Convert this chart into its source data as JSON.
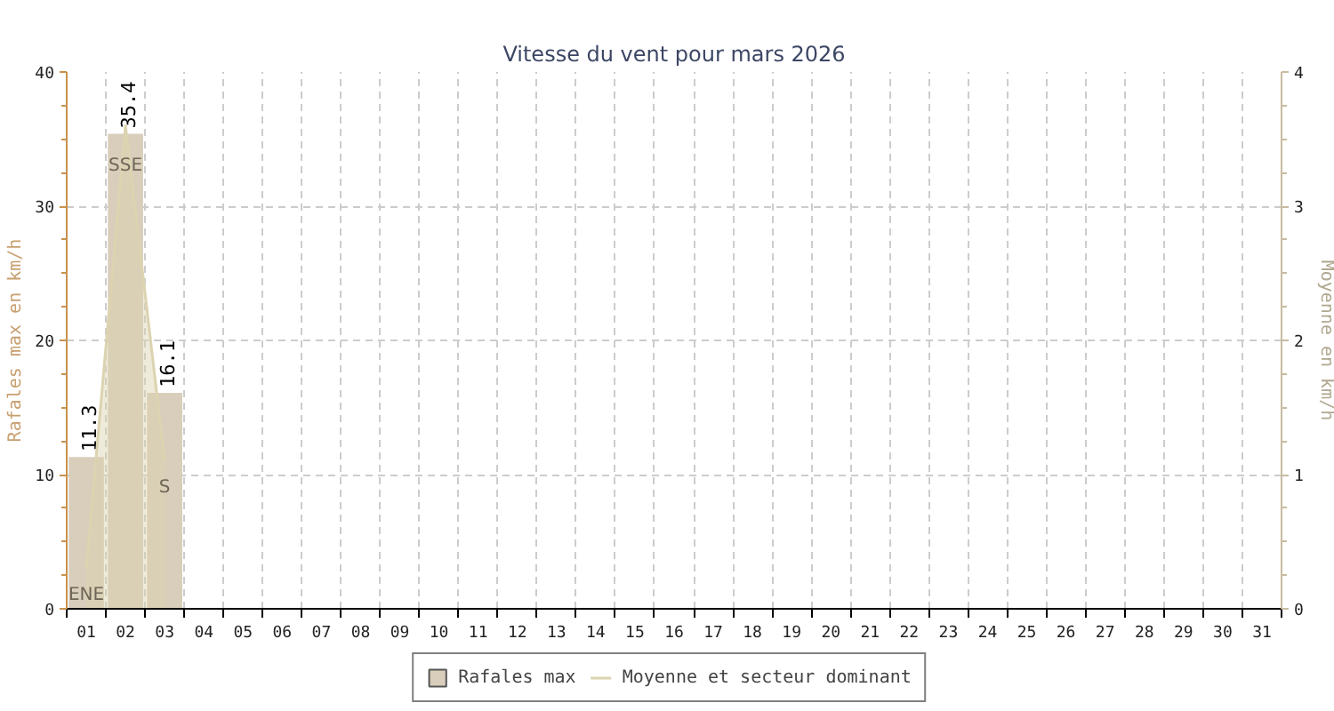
{
  "chart_data": {
    "type": "bar",
    "title": "Vitesse du vent pour mars 2026",
    "ylabel": "Rafales max en km/h",
    "y2label": "Moyenne en km/h",
    "categories": [
      "01",
      "02",
      "03",
      "04",
      "05",
      "06",
      "07",
      "08",
      "09",
      "10",
      "11",
      "12",
      "13",
      "14",
      "15",
      "16",
      "17",
      "18",
      "19",
      "20",
      "21",
      "22",
      "23",
      "24",
      "25",
      "26",
      "27",
      "28",
      "29",
      "30",
      "31"
    ],
    "series": [
      {
        "name": "Rafales max",
        "color": "#d9cebb",
        "values": [
          11.3,
          35.4,
          16.1,
          null,
          null,
          null,
          null,
          null,
          null,
          null,
          null,
          null,
          null,
          null,
          null,
          null,
          null,
          null,
          null,
          null,
          null,
          null,
          null,
          null,
          null,
          null,
          null,
          null,
          null,
          null,
          null
        ],
        "value_labels": [
          "11.3",
          "35.4",
          "16.1",
          null,
          null,
          null,
          null,
          null,
          null,
          null,
          null,
          null,
          null,
          null,
          null,
          null,
          null,
          null,
          null,
          null,
          null,
          null,
          null,
          null,
          null,
          null,
          null,
          null,
          null,
          null,
          null
        ]
      },
      {
        "name": "Moyenne et secteur dominant",
        "type": "area",
        "axis": "y2",
        "color": "#dcd3b0",
        "values": [
          0.3,
          3.6,
          1.1,
          null,
          null,
          null,
          null,
          null,
          null,
          null,
          null,
          null,
          null,
          null,
          null,
          null,
          null,
          null,
          null,
          null,
          null,
          null,
          null,
          null,
          null,
          null,
          null,
          null,
          null,
          null,
          null
        ]
      }
    ],
    "ylim": [
      0,
      40
    ],
    "yticks": [
      0,
      10,
      20,
      30,
      40
    ],
    "y2lim": [
      0,
      4
    ],
    "y2ticks": [
      0,
      1,
      2,
      3,
      4
    ],
    "grid": true,
    "legend": "bottom",
    "annotations": [
      {
        "text": "ENE",
        "x": "01",
        "y": 1
      },
      {
        "text": "SSE",
        "x": "02",
        "y": 33
      },
      {
        "text": "S",
        "x": "03",
        "y": 9
      }
    ]
  }
}
